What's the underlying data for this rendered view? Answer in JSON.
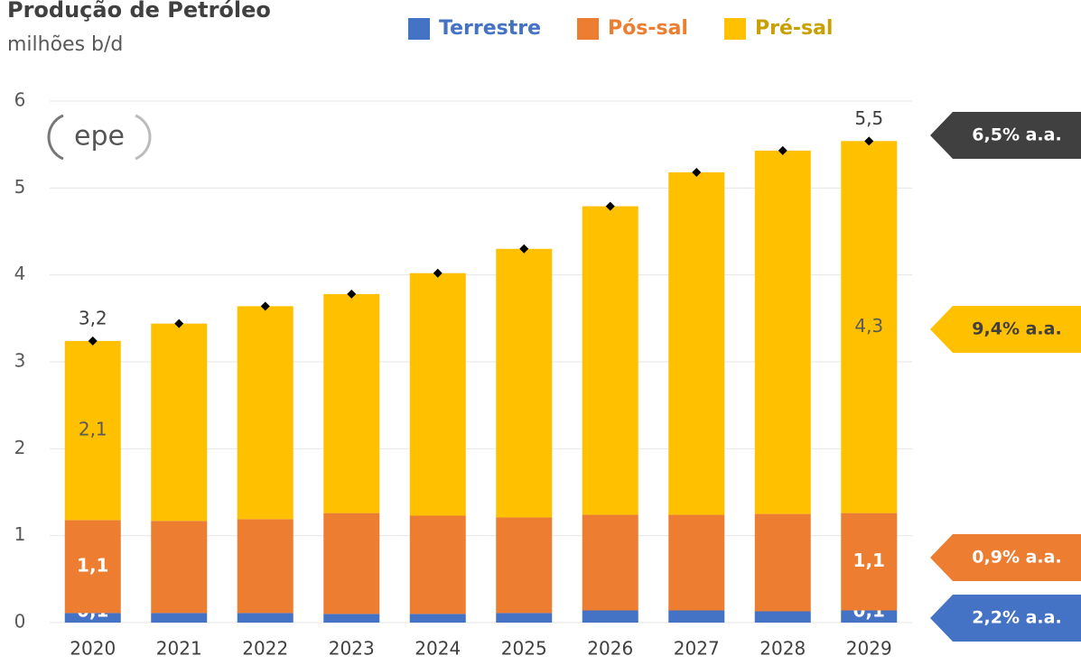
{
  "chart_data": {
    "type": "stacked_bar",
    "title": "Produção de Petróleo",
    "subtitle": "milhões b/d",
    "logo": "epe",
    "categories": [
      "2020",
      "2021",
      "2022",
      "2023",
      "2024",
      "2025",
      "2026",
      "2027",
      "2028",
      "2029"
    ],
    "series": [
      {
        "name": "Terrestre",
        "color": "#4472c4",
        "values": [
          0.11,
          0.11,
          0.11,
          0.1,
          0.1,
          0.11,
          0.14,
          0.14,
          0.13,
          0.14
        ],
        "value_labels": [
          "0,1",
          null,
          null,
          null,
          null,
          null,
          null,
          null,
          null,
          "0,1"
        ]
      },
      {
        "name": "Pós-sal",
        "color": "#ed7d31",
        "values": [
          1.07,
          1.06,
          1.08,
          1.16,
          1.13,
          1.1,
          1.1,
          1.1,
          1.12,
          1.12
        ],
        "value_labels": [
          "1,1",
          null,
          null,
          null,
          null,
          null,
          null,
          null,
          null,
          "1,1"
        ]
      },
      {
        "name": "Pré-sal",
        "color": "#ffc000",
        "values": [
          2.06,
          2.27,
          2.45,
          2.52,
          2.79,
          3.09,
          3.55,
          3.94,
          4.18,
          4.28
        ],
        "value_labels": [
          "2,1",
          null,
          null,
          null,
          null,
          null,
          null,
          null,
          null,
          "4,3"
        ]
      }
    ],
    "totals": {
      "values": [
        3.24,
        3.44,
        3.64,
        3.78,
        4.02,
        4.3,
        4.79,
        5.18,
        5.43,
        5.54
      ],
      "value_labels": [
        "3,2",
        null,
        null,
        null,
        null,
        null,
        null,
        null,
        null,
        "5,5"
      ]
    },
    "annotations": [
      {
        "text": "6,5% a.a.",
        "color": "#404040"
      },
      {
        "text": "9,4% a.a.",
        "color": "#ffc000"
      },
      {
        "text": "0,9% a.a.",
        "color": "#ed7d31"
      },
      {
        "text": "2,2% a.a.",
        "color": "#4472c4"
      }
    ],
    "ylim": [
      0,
      6
    ],
    "yticks": [
      0,
      1,
      2,
      3,
      4,
      5,
      6
    ],
    "grid": true
  }
}
